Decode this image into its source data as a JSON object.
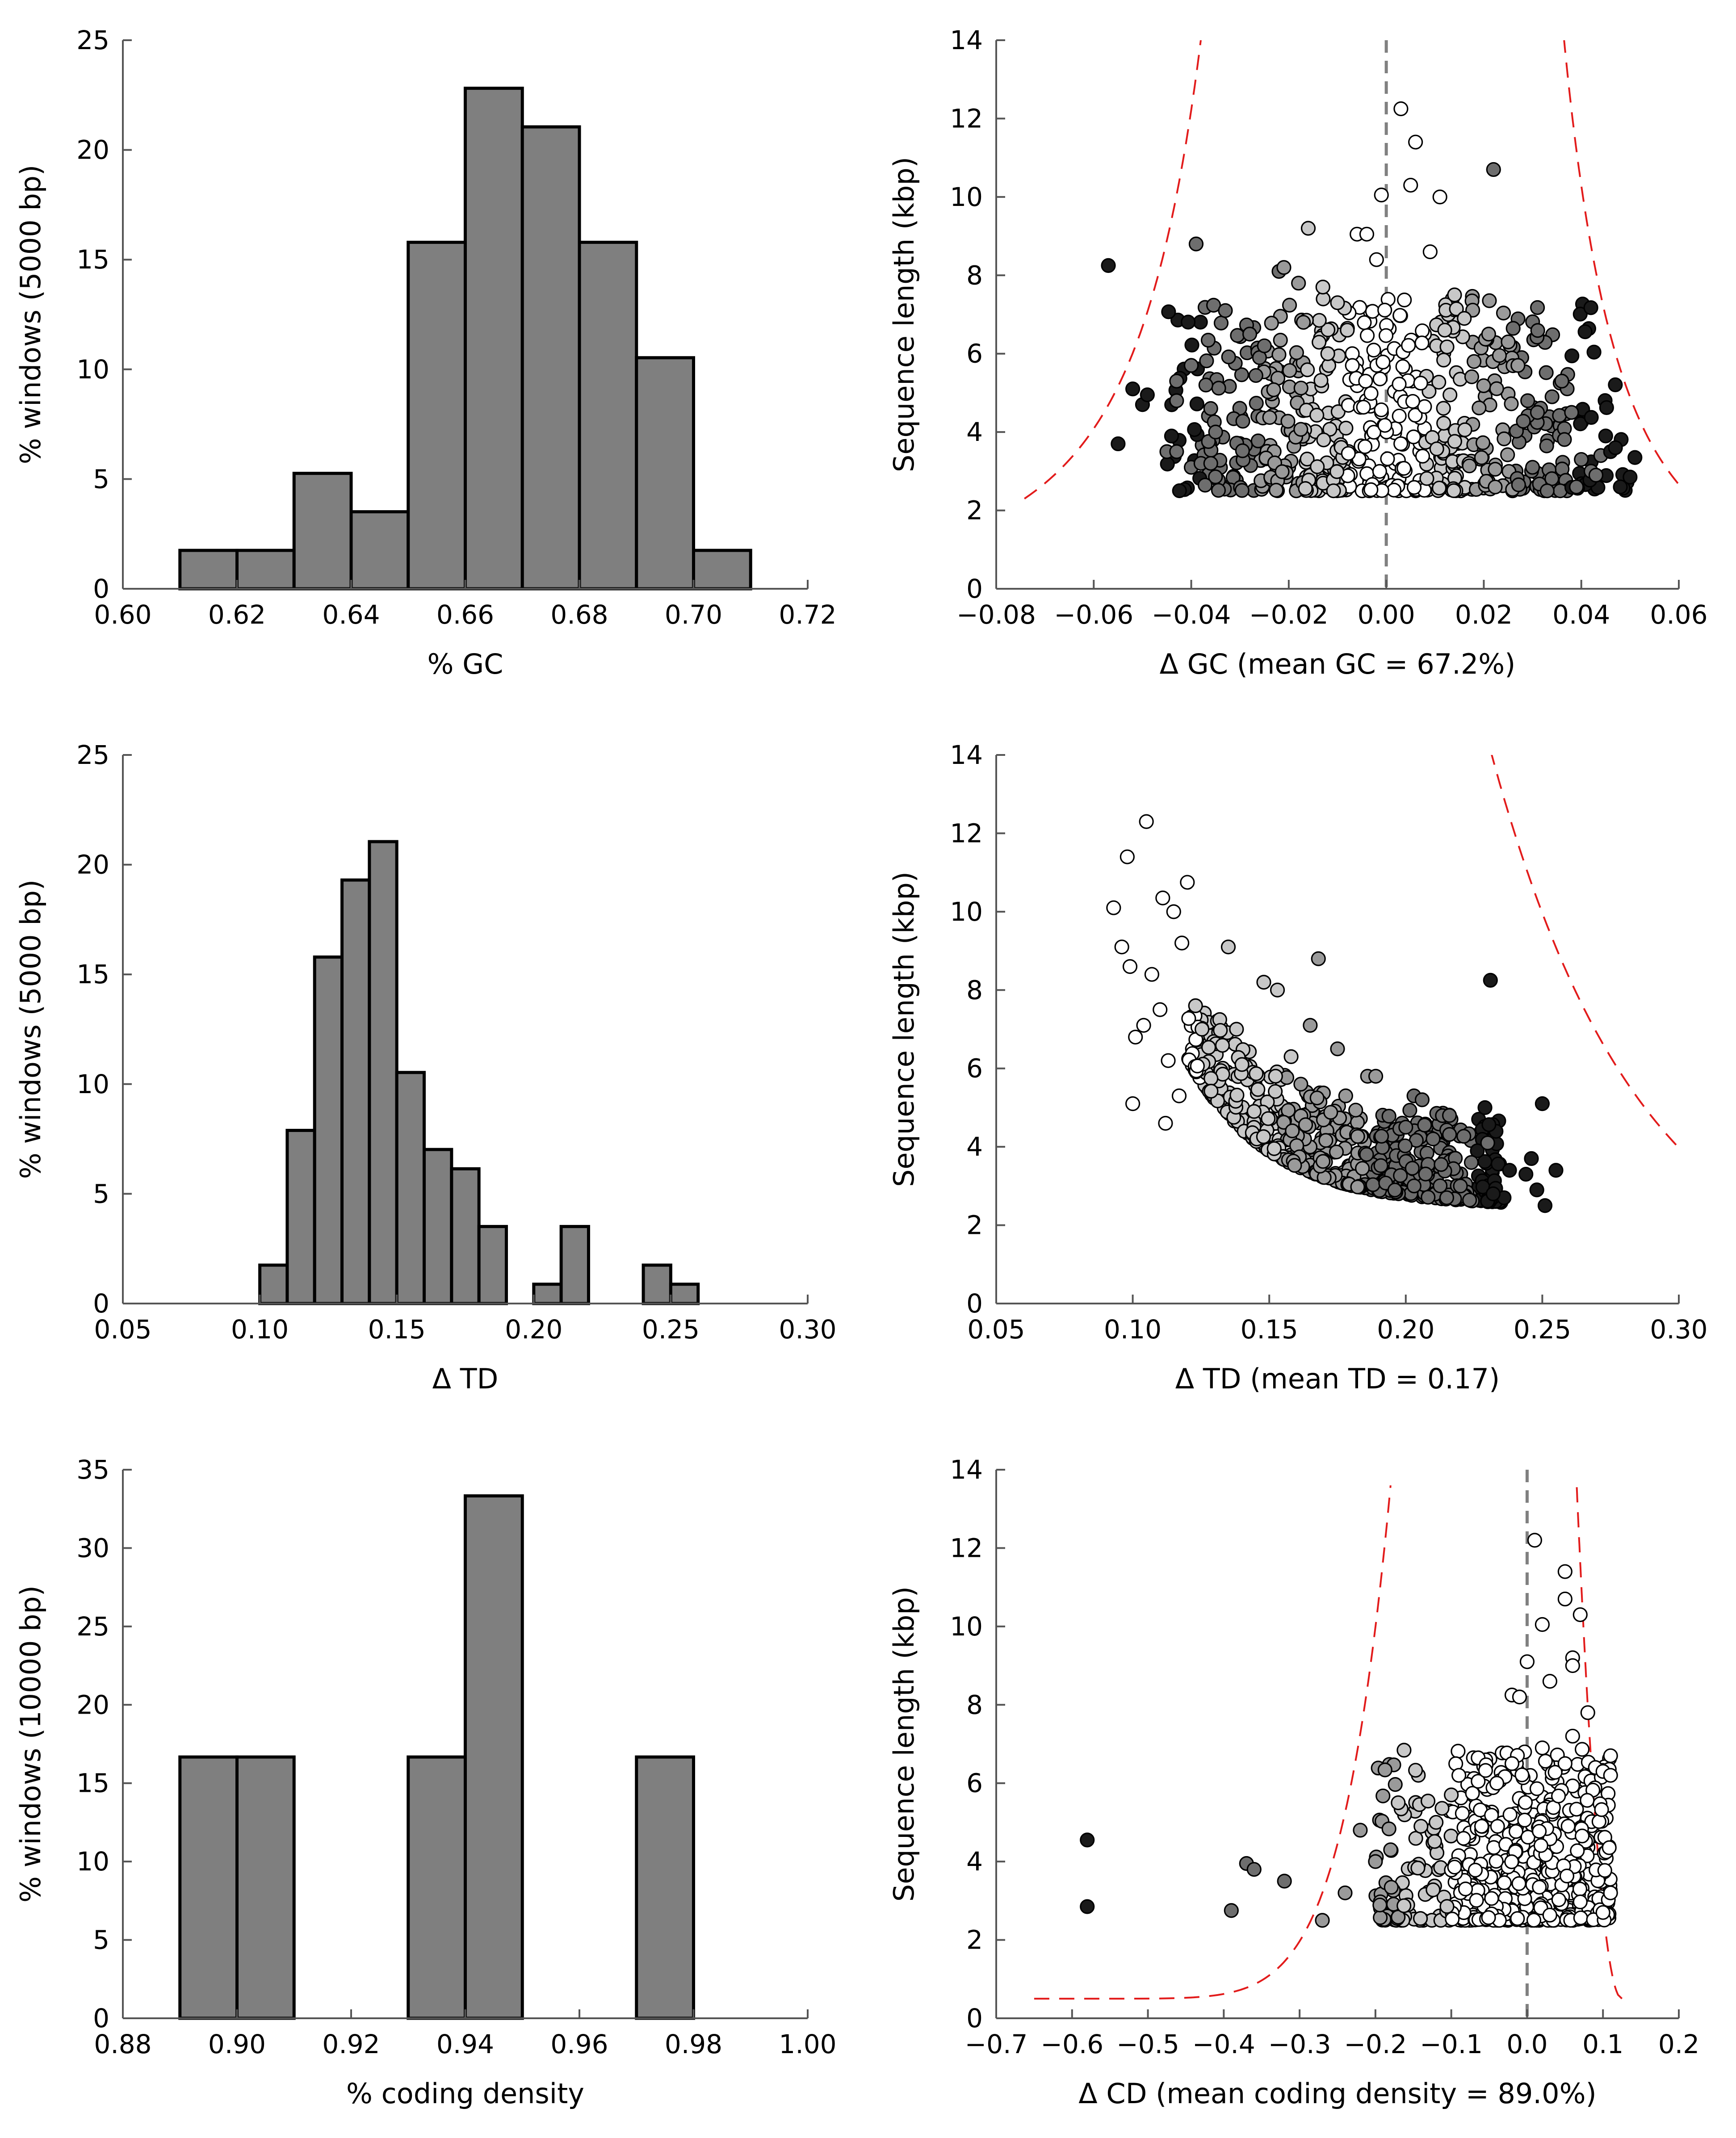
{
  "chart_data": [
    {
      "id": "gc_hist",
      "type": "bar",
      "subtype": "histogram",
      "xlabel": "% GC",
      "ylabel": "% windows (5000 bp)",
      "xlim": [
        0.6,
        0.72
      ],
      "ylim": [
        0,
        25
      ],
      "xticks": [
        "0.60",
        "0.62",
        "0.64",
        "0.66",
        "0.68",
        "0.70",
        "0.72"
      ],
      "yticks": [
        "0",
        "5",
        "10",
        "15",
        "20",
        "25"
      ],
      "bins": [
        [
          0.61,
          0.62
        ],
        [
          0.62,
          0.63
        ],
        [
          0.63,
          0.64
        ],
        [
          0.64,
          0.65
        ],
        [
          0.65,
          0.66
        ],
        [
          0.66,
          0.67
        ],
        [
          0.67,
          0.68
        ],
        [
          0.68,
          0.69
        ],
        [
          0.69,
          0.7
        ],
        [
          0.7,
          0.71
        ]
      ],
      "values": [
        1.75,
        1.75,
        5.26,
        3.51,
        15.79,
        22.81,
        21.05,
        15.79,
        10.53,
        1.75
      ],
      "bar_color": "#7f7f7f"
    },
    {
      "id": "gc_scatter",
      "type": "scatter",
      "xlabel": "Δ GC (mean GC = 67.2%)",
      "ylabel": "Sequence length (kbp)",
      "xlim": [
        -0.08,
        0.06
      ],
      "ylim": [
        0,
        14
      ],
      "xticks": [
        "−0.08",
        "−0.06",
        "−0.04",
        "−0.02",
        "0.00",
        "0.02",
        "0.04",
        "0.06"
      ],
      "yticks": [
        "0",
        "2",
        "4",
        "6",
        "8",
        "10",
        "12",
        "14"
      ],
      "vline_at": 0.0,
      "cloud_summary": "about 600 points, dense between 2.5 and 5 kbp, shaded white near 0 to black at the edges",
      "points": [
        [
          -0.057,
          8.25,
          4
        ],
        [
          -0.055,
          3.7,
          4
        ],
        [
          -0.052,
          5.1,
          4
        ],
        [
          -0.05,
          4.7,
          4
        ],
        [
          -0.049,
          4.95,
          4
        ],
        [
          -0.045,
          3.5,
          3
        ],
        [
          -0.043,
          3.5,
          3
        ],
        [
          -0.043,
          4.8,
          3
        ],
        [
          -0.043,
          5.3,
          3
        ],
        [
          -0.04,
          5.7,
          3
        ],
        [
          -0.039,
          8.8,
          3
        ],
        [
          -0.04,
          3.1,
          3
        ],
        [
          -0.038,
          3.2,
          3
        ],
        [
          -0.036,
          3.2,
          3
        ],
        [
          -0.036,
          4.6,
          3
        ],
        [
          -0.037,
          5.2,
          3
        ],
        [
          -0.035,
          4.0,
          3
        ],
        [
          -0.033,
          7.1,
          3
        ],
        [
          -0.028,
          6.5,
          3
        ],
        [
          -0.026,
          5.9,
          3
        ],
        [
          -0.025,
          6.2,
          3
        ],
        [
          -0.022,
          8.1,
          3
        ],
        [
          -0.021,
          8.2,
          2
        ],
        [
          -0.018,
          7.8,
          2
        ],
        [
          -0.017,
          6.8,
          2
        ],
        [
          -0.016,
          9.2,
          1
        ],
        [
          -0.013,
          7.7,
          1
        ],
        [
          -0.012,
          6.0,
          1
        ],
        [
          -0.01,
          7.3,
          1
        ],
        [
          -0.008,
          6.6,
          1
        ],
        [
          -0.006,
          9.05,
          0
        ],
        [
          -0.004,
          9.05,
          0
        ],
        [
          -0.002,
          8.4,
          0
        ],
        [
          -0.001,
          10.05,
          0
        ],
        [
          0.003,
          12.25,
          0
        ],
        [
          0.006,
          11.4,
          0
        ],
        [
          0.005,
          10.3,
          0
        ],
        [
          0.011,
          10.0,
          0
        ],
        [
          0.009,
          8.6,
          0
        ],
        [
          0.022,
          10.7,
          3
        ],
        [
          0.014,
          7.5,
          1
        ],
        [
          0.012,
          6.6,
          1
        ],
        [
          0.016,
          6.9,
          1
        ],
        [
          0.018,
          5.8,
          2
        ],
        [
          0.021,
          6.5,
          2
        ],
        [
          0.025,
          6.3,
          2
        ],
        [
          0.027,
          5.7,
          2
        ],
        [
          0.029,
          4.8,
          3
        ],
        [
          0.031,
          4.5,
          3
        ],
        [
          0.034,
          4.9,
          3
        ],
        [
          0.036,
          5.3,
          3
        ],
        [
          0.038,
          4.5,
          3
        ],
        [
          0.04,
          3.3,
          3
        ],
        [
          0.042,
          3.0,
          3
        ],
        [
          0.044,
          3.4,
          3
        ],
        [
          0.045,
          3.9,
          4
        ],
        [
          0.046,
          3.5,
          4
        ],
        [
          0.047,
          3.6,
          4
        ],
        [
          0.048,
          2.6,
          4
        ],
        [
          0.05,
          2.85,
          4
        ],
        [
          0.051,
          3.35,
          4
        ],
        [
          0.043,
          2.9,
          3
        ],
        [
          0.039,
          2.6,
          3
        ],
        [
          0.033,
          2.5,
          3
        ],
        [
          0.03,
          3.1,
          3
        ]
      ],
      "threshold_curves": "red dashed curves"
    },
    {
      "id": "td_hist",
      "type": "bar",
      "subtype": "histogram",
      "xlabel": "Δ TD",
      "ylabel": "% windows (5000 bp)",
      "xlim": [
        0.05,
        0.3
      ],
      "ylim": [
        0,
        25
      ],
      "xticks": [
        "0.05",
        "0.10",
        "0.15",
        "0.20",
        "0.25",
        "0.30"
      ],
      "yticks": [
        "0",
        "5",
        "10",
        "15",
        "20",
        "25"
      ],
      "bins": [
        [
          0.1,
          0.11
        ],
        [
          0.11,
          0.12
        ],
        [
          0.12,
          0.13
        ],
        [
          0.13,
          0.14
        ],
        [
          0.14,
          0.15
        ],
        [
          0.15,
          0.16
        ],
        [
          0.16,
          0.17
        ],
        [
          0.17,
          0.18
        ],
        [
          0.18,
          0.19
        ],
        [
          0.2,
          0.21
        ],
        [
          0.21,
          0.22
        ],
        [
          0.24,
          0.25
        ],
        [
          0.25,
          0.26
        ]
      ],
      "values": [
        1.75,
        7.89,
        15.79,
        19.3,
        21.05,
        10.53,
        7.02,
        6.14,
        3.51,
        0.88,
        3.51,
        1.75,
        0.88
      ],
      "bar_color": "#7f7f7f"
    },
    {
      "id": "td_scatter",
      "type": "scatter",
      "xlabel": "Δ TD (mean TD = 0.17)",
      "ylabel": "Sequence length (kbp)",
      "xlim": [
        0.05,
        0.3
      ],
      "ylim": [
        0,
        14
      ],
      "xticks": [
        "0.05",
        "0.10",
        "0.15",
        "0.20",
        "0.25",
        "0.30"
      ],
      "yticks": [
        "0",
        "2",
        "4",
        "6",
        "8",
        "10",
        "12",
        "14"
      ],
      "cloud_summary": "about 600 points along a decreasing curve, white at low TD to black at high TD",
      "points": [
        [
          0.093,
          10.1,
          0
        ],
        [
          0.096,
          9.1,
          0
        ],
        [
          0.098,
          11.4,
          0
        ],
        [
          0.099,
          8.6,
          0
        ],
        [
          0.105,
          12.3,
          0
        ],
        [
          0.107,
          8.4,
          0
        ],
        [
          0.111,
          10.35,
          0
        ],
        [
          0.115,
          10.0,
          0
        ],
        [
          0.12,
          10.75,
          0
        ],
        [
          0.118,
          9.2,
          0
        ],
        [
          0.123,
          7.6,
          1
        ],
        [
          0.1,
          5.1,
          0
        ],
        [
          0.101,
          6.8,
          0
        ],
        [
          0.104,
          7.1,
          0
        ],
        [
          0.11,
          7.5,
          0
        ],
        [
          0.113,
          6.2,
          0
        ],
        [
          0.117,
          5.3,
          0
        ],
        [
          0.112,
          4.6,
          0
        ],
        [
          0.135,
          9.1,
          1
        ],
        [
          0.138,
          7.0,
          1
        ],
        [
          0.14,
          6.1,
          1
        ],
        [
          0.148,
          8.2,
          1
        ],
        [
          0.153,
          8.0,
          1
        ],
        [
          0.158,
          6.3,
          1
        ],
        [
          0.168,
          8.8,
          2
        ],
        [
          0.165,
          7.1,
          2
        ],
        [
          0.175,
          6.5,
          2
        ],
        [
          0.178,
          5.3,
          2
        ],
        [
          0.186,
          5.8,
          2
        ],
        [
          0.189,
          5.8,
          2
        ],
        [
          0.203,
          5.3,
          3
        ],
        [
          0.206,
          5.2,
          3
        ],
        [
          0.2,
          4.5,
          3
        ],
        [
          0.21,
          4.2,
          3
        ],
        [
          0.216,
          4.8,
          3
        ],
        [
          0.224,
          3.6,
          3
        ],
        [
          0.23,
          4.1,
          3
        ],
        [
          0.231,
          8.25,
          4
        ],
        [
          0.229,
          5.0,
          4
        ],
        [
          0.25,
          5.1,
          4
        ],
        [
          0.246,
          3.7,
          4
        ],
        [
          0.244,
          3.3,
          4
        ],
        [
          0.255,
          3.4,
          4
        ],
        [
          0.248,
          2.9,
          4
        ],
        [
          0.251,
          2.5,
          4
        ],
        [
          0.236,
          2.7,
          4
        ],
        [
          0.238,
          3.4,
          4
        ],
        [
          0.232,
          2.8,
          4
        ],
        [
          0.22,
          3.0,
          3
        ],
        [
          0.215,
          2.7,
          3
        ]
      ],
      "threshold_curves": "red dashed curve"
    },
    {
      "id": "cd_hist",
      "type": "bar",
      "subtype": "histogram",
      "xlabel": "% coding density",
      "ylabel": "% windows (10000 bp)",
      "xlim": [
        0.88,
        1.0
      ],
      "ylim": [
        0,
        35
      ],
      "xticks": [
        "0.88",
        "0.90",
        "0.92",
        "0.94",
        "0.96",
        "0.98",
        "1.00"
      ],
      "yticks": [
        "0",
        "5",
        "10",
        "15",
        "20",
        "25",
        "30",
        "35"
      ],
      "bins": [
        [
          0.89,
          0.9
        ],
        [
          0.9,
          0.91
        ],
        [
          0.93,
          0.94
        ],
        [
          0.94,
          0.95
        ],
        [
          0.97,
          0.98
        ]
      ],
      "values": [
        16.67,
        16.67,
        16.67,
        33.33,
        16.67
      ],
      "bar_color": "#7f7f7f"
    },
    {
      "id": "cd_scatter",
      "type": "scatter",
      "xlabel": "Δ CD (mean coding density = 89.0%)",
      "ylabel": "Sequence length (kbp)",
      "xlim": [
        -0.7,
        0.2
      ],
      "ylim": [
        0,
        14
      ],
      "xticks": [
        "−0.7",
        "−0.6",
        "−0.5",
        "−0.4",
        "−0.3",
        "−0.2",
        "−0.1",
        "0.0",
        "0.1",
        "0.2"
      ],
      "yticks": [
        "0",
        "2",
        "4",
        "6",
        "8",
        "10",
        "12",
        "14"
      ],
      "vline_at": 0.0,
      "cloud_summary": "about 600 points, most between −0.15 and 0.11, white near 0 to black further left",
      "points": [
        [
          -0.58,
          4.55,
          4
        ],
        [
          -0.58,
          2.85,
          4
        ],
        [
          -0.39,
          2.75,
          3
        ],
        [
          -0.37,
          3.95,
          3
        ],
        [
          -0.36,
          3.8,
          3
        ],
        [
          -0.32,
          3.5,
          3
        ],
        [
          -0.27,
          2.5,
          2
        ],
        [
          -0.24,
          3.2,
          2
        ],
        [
          -0.22,
          4.8,
          2
        ],
        [
          -0.2,
          4.0,
          2
        ],
        [
          -0.18,
          4.3,
          2
        ],
        [
          -0.17,
          5.5,
          1
        ],
        [
          -0.14,
          4.9,
          1
        ],
        [
          -0.12,
          5.0,
          1
        ],
        [
          -0.1,
          5.7,
          1
        ],
        [
          -0.09,
          6.2,
          0
        ],
        [
          -0.06,
          4.9,
          0
        ],
        [
          -0.02,
          8.25,
          0
        ],
        [
          -0.01,
          8.2,
          0
        ],
        [
          0.03,
          8.6,
          0
        ],
        [
          0.0,
          9.1,
          0
        ],
        [
          0.01,
          12.2,
          0
        ],
        [
          0.02,
          10.05,
          0
        ],
        [
          0.05,
          10.7,
          0
        ],
        [
          0.06,
          9.2,
          0
        ],
        [
          0.07,
          10.3,
          0
        ],
        [
          0.05,
          11.4,
          0
        ],
        [
          0.06,
          9.0,
          0
        ],
        [
          0.08,
          7.8,
          0
        ],
        [
          0.06,
          7.2,
          0
        ],
        [
          0.09,
          6.4,
          0
        ],
        [
          0.1,
          6.3,
          0
        ],
        [
          0.11,
          6.7,
          0
        ],
        [
          0.11,
          6.2,
          0
        ],
        [
          0.05,
          6.5,
          0
        ],
        [
          0.02,
          6.9,
          0
        ],
        [
          -0.02,
          6.5,
          0
        ],
        [
          -0.04,
          6.0,
          0
        ],
        [
          0.1,
          2.7,
          0
        ],
        [
          0.11,
          3.2,
          0
        ]
      ],
      "threshold_curves": "red dashed curves"
    }
  ]
}
